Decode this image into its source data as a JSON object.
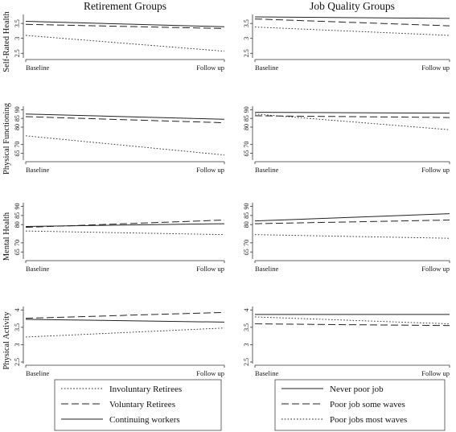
{
  "chart_data": {
    "type": "line",
    "columns": [
      "Retirement Groups",
      "Job Quality Groups"
    ],
    "x_categories": [
      "Baseline",
      "Follow up"
    ],
    "legends": [
      {
        "entries": [
          {
            "label": "Involuntary Retirees",
            "dash": "dotted"
          },
          {
            "label": "Voluntary Retirees",
            "dash": "dashed"
          },
          {
            "label": "Continuing workers",
            "dash": "solid"
          }
        ]
      },
      {
        "entries": [
          {
            "label": "Never poor job",
            "dash": "solid"
          },
          {
            "label": "Poor job some waves",
            "dash": "dashed"
          },
          {
            "label": "Poor jobs most waves",
            "dash": "dotted"
          }
        ]
      }
    ],
    "rows": [
      {
        "label": "Self-Rated Health",
        "ylim": [
          2.4,
          3.8
        ],
        "ticks": [
          "2.5",
          "3",
          "3.5"
        ],
        "tick_values": [
          2.5,
          3,
          3.5
        ],
        "panels": [
          {
            "series": [
              {
                "dash": "solid",
                "values": [
                  3.57,
                  3.39
                ]
              },
              {
                "dash": "dashed",
                "values": [
                  3.47,
                  3.33
                ]
              },
              {
                "dash": "dotted",
                "values": [
                  3.1,
                  2.57
                ]
              }
            ]
          },
          {
            "series": [
              {
                "dash": "solid",
                "values": [
                  3.72,
                  3.67
                ]
              },
              {
                "dash": "dashed",
                "values": [
                  3.65,
                  3.42
                ]
              },
              {
                "dash": "dotted",
                "values": [
                  3.38,
                  3.1
                ]
              }
            ]
          }
        ]
      },
      {
        "label": "Physical Functioning",
        "ylim": [
          62,
          92
        ],
        "ticks": [
          "65",
          "70",
          "80",
          "85",
          "90"
        ],
        "tick_values": [
          65,
          70,
          80,
          85,
          90
        ],
        "panels": [
          {
            "series": [
              {
                "dash": "solid",
                "values": [
                  87.5,
                  84.5
                ]
              },
              {
                "dash": "dashed",
                "values": [
                  86,
                  82.5
                ]
              },
              {
                "dash": "dotted",
                "values": [
                  75,
                  64
                ]
              }
            ]
          },
          {
            "series": [
              {
                "dash": "solid",
                "values": [
                  88.5,
                  88
                ]
              },
              {
                "dash": "dashed",
                "values": [
                  86.5,
                  85.5
                ]
              },
              {
                "dash": "dotted",
                "values": [
                  87.5,
                  78.5
                ]
              }
            ]
          }
        ]
      },
      {
        "label": "Mental Health",
        "ylim": [
          62,
          92
        ],
        "ticks": [
          "65",
          "70",
          "80",
          "85",
          "90"
        ],
        "tick_values": [
          65,
          70,
          80,
          85,
          90
        ],
        "panels": [
          {
            "series": [
              {
                "dash": "solid",
                "values": [
                  79,
                  80.5
                ]
              },
              {
                "dash": "dashed",
                "values": [
                  78.5,
                  82.5
                ]
              },
              {
                "dash": "dotted",
                "values": [
                  76.5,
                  74.5
                ]
              }
            ]
          },
          {
            "series": [
              {
                "dash": "solid",
                "values": [
                  82,
                  86
                ]
              },
              {
                "dash": "dashed",
                "values": [
                  80.5,
                  82.5
                ]
              },
              {
                "dash": "dotted",
                "values": [
                  74.5,
                  72.5
                ]
              }
            ]
          }
        ]
      },
      {
        "label": "Physical Activity",
        "ylim": [
          2.5,
          4.1
        ],
        "ticks": [
          "2.5",
          "3",
          "3.5",
          "4"
        ],
        "tick_values": [
          2.5,
          3,
          3.5,
          4
        ],
        "panels": [
          {
            "series": [
              {
                "dash": "solid",
                "values": [
                  3.73,
                  3.65
                ]
              },
              {
                "dash": "dashed",
                "values": [
                  3.76,
                  3.93
                ]
              },
              {
                "dash": "dotted",
                "values": [
                  3.22,
                  3.48
                ]
              }
            ]
          },
          {
            "series": [
              {
                "dash": "solid",
                "values": [
                  3.87,
                  3.87
                ]
              },
              {
                "dash": "dashed",
                "values": [
                  3.6,
                  3.55
                ]
              },
              {
                "dash": "dotted",
                "values": [
                  3.8,
                  3.6
                ]
              }
            ]
          }
        ]
      }
    ]
  }
}
